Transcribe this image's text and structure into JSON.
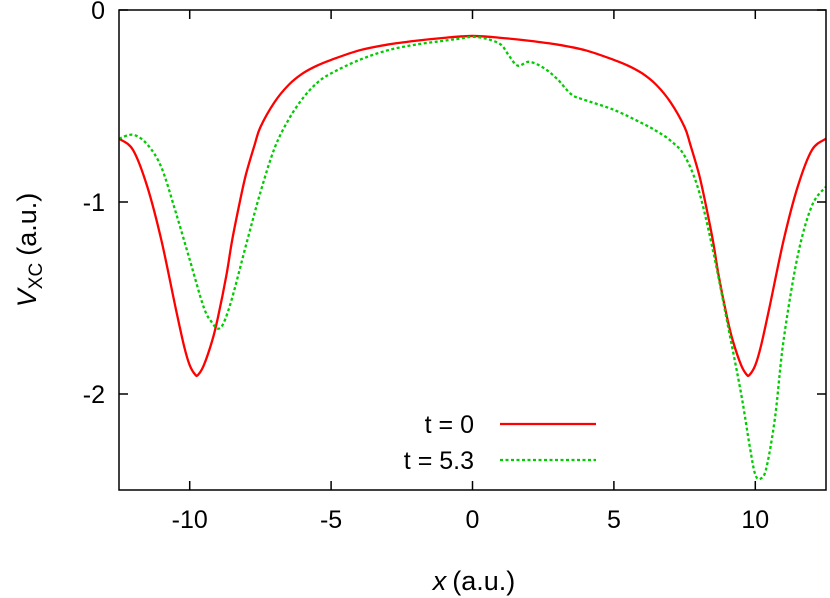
{
  "chart_data": {
    "type": "line",
    "xlabel_var": "x",
    "xlabel_unit": "(a.u.)",
    "ylabel_var": "V",
    "ylabel_sub": "XC",
    "ylabel_unit": "(a.u.)",
    "xlim": [
      -12.5,
      12.5
    ],
    "ylim": [
      -2.5,
      0
    ],
    "xticks": [
      -10,
      -5,
      0,
      5,
      10
    ],
    "yticks": [
      -2,
      -1,
      0
    ],
    "xtick_labels": [
      "-10",
      "-5",
      "0",
      "5",
      "10"
    ],
    "ytick_labels": [
      "-2",
      "-1",
      "0"
    ],
    "legend_position": "bottom-center",
    "series": [
      {
        "name": "t = 0",
        "color": "#ff0000",
        "dash": "solid",
        "x": [
          -12.5,
          -12.0,
          -11.5,
          -11.0,
          -10.5,
          -10.2,
          -10.0,
          -9.8,
          -9.7,
          -9.5,
          -9.2,
          -9.0,
          -8.7,
          -8.5,
          -8.2,
          -8.0,
          -7.7,
          -7.5,
          -7.0,
          -6.5,
          -6.0,
          -5.5,
          -5.0,
          -4.0,
          -3.0,
          -2.0,
          -1.0,
          0.0,
          1.0,
          2.0,
          3.0,
          4.0,
          5.0,
          5.5,
          6.0,
          6.5,
          7.0,
          7.5,
          7.7,
          8.0,
          8.2,
          8.5,
          8.7,
          9.0,
          9.2,
          9.5,
          9.7,
          9.8,
          10.0,
          10.2,
          10.5,
          11.0,
          11.5,
          12.0,
          12.5
        ],
        "y": [
          -0.67,
          -0.73,
          -0.92,
          -1.2,
          -1.55,
          -1.75,
          -1.85,
          -1.9,
          -1.9,
          -1.85,
          -1.72,
          -1.6,
          -1.38,
          -1.2,
          -0.98,
          -0.85,
          -0.7,
          -0.61,
          -0.48,
          -0.39,
          -0.33,
          -0.29,
          -0.26,
          -0.21,
          -0.18,
          -0.16,
          -0.145,
          -0.135,
          -0.145,
          -0.16,
          -0.18,
          -0.21,
          -0.26,
          -0.29,
          -0.33,
          -0.39,
          -0.48,
          -0.61,
          -0.7,
          -0.85,
          -0.98,
          -1.2,
          -1.38,
          -1.6,
          -1.72,
          -1.85,
          -1.9,
          -1.9,
          -1.85,
          -1.75,
          -1.55,
          -1.2,
          -0.92,
          -0.73,
          -0.67
        ]
      },
      {
        "name": "t = 5.3",
        "color": "#00cc00",
        "dash": "dotted",
        "x": [
          -12.5,
          -12.0,
          -11.5,
          -11.0,
          -10.5,
          -10.0,
          -9.5,
          -9.2,
          -9.0,
          -8.8,
          -8.5,
          -8.0,
          -7.5,
          -7.0,
          -6.5,
          -6.0,
          -5.5,
          -5.0,
          -4.0,
          -3.0,
          -2.0,
          -1.0,
          -0.5,
          0.0,
          0.5,
          1.0,
          1.3,
          1.6,
          2.0,
          2.5,
          3.0,
          3.5,
          4.0,
          5.0,
          6.0,
          6.5,
          7.0,
          7.5,
          8.0,
          8.5,
          9.0,
          9.5,
          9.8,
          10.0,
          10.2,
          10.4,
          10.7,
          11.0,
          11.5,
          12.0,
          12.5
        ],
        "y": [
          -0.67,
          -0.65,
          -0.7,
          -0.82,
          -1.05,
          -1.3,
          -1.55,
          -1.63,
          -1.66,
          -1.63,
          -1.5,
          -1.22,
          -0.95,
          -0.72,
          -0.57,
          -0.46,
          -0.38,
          -0.33,
          -0.26,
          -0.21,
          -0.18,
          -0.16,
          -0.15,
          -0.14,
          -0.15,
          -0.18,
          -0.24,
          -0.29,
          -0.27,
          -0.3,
          -0.36,
          -0.44,
          -0.47,
          -0.52,
          -0.59,
          -0.63,
          -0.68,
          -0.76,
          -0.94,
          -1.25,
          -1.62,
          -2.0,
          -2.27,
          -2.42,
          -2.44,
          -2.38,
          -2.12,
          -1.72,
          -1.28,
          -1.02,
          -0.92
        ]
      }
    ]
  }
}
